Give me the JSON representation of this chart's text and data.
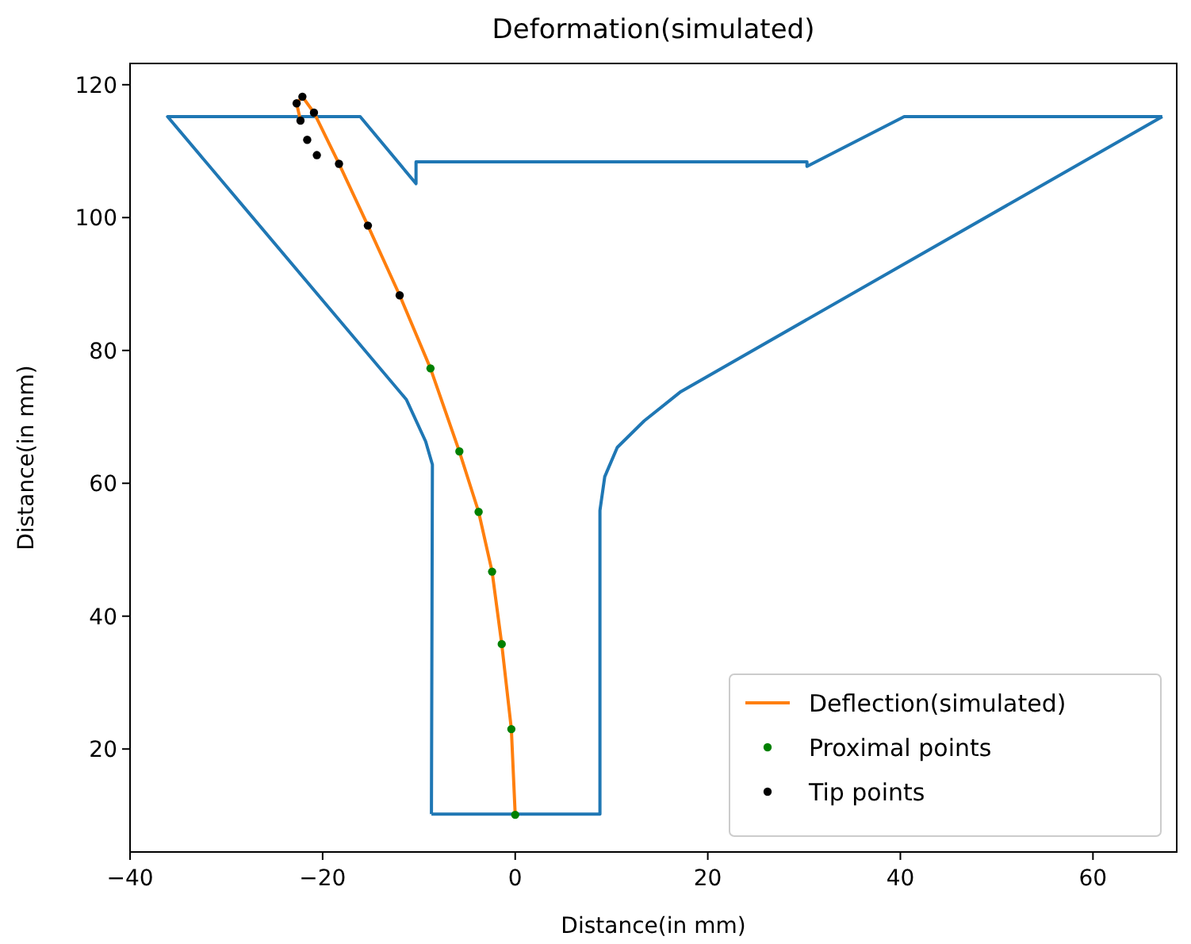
{
  "chart_data": {
    "type": "line",
    "title": "Deformation(simulated)",
    "xlabel": "Distance(in mm)",
    "ylabel": "Distance(in mm)",
    "xlim": [
      -40,
      68.7
    ],
    "ylim": [
      4.5,
      123.2
    ],
    "xticks": [
      {
        "value": -40,
        "label": "−40"
      },
      {
        "value": -20,
        "label": "−20"
      },
      0,
      20,
      40,
      60
    ],
    "yticks": [
      20,
      40,
      60,
      80,
      100,
      120
    ],
    "grid": false,
    "legend": "bottom right",
    "series": [
      {
        "color": "#1f77b4",
        "marker": "none",
        "x": [
          -8.7,
          -8.6,
          -9.3,
          -11.3,
          -36.1,
          -16.1,
          -10.3,
          -10.3,
          30.3,
          30.3,
          40.4,
          67.2
        ],
        "values": [
          10.2,
          62.8,
          66.3,
          72.6,
          115.2,
          115.2,
          105.1,
          108.4,
          108.4,
          107.7,
          115.2,
          115.2
        ]
      },
      {
        "color": "#1f77b4",
        "marker": "none",
        "x": [
          -8.7,
          8.8,
          8.8,
          9.3,
          10.6,
          13.4,
          17.2,
          67.2
        ],
        "values": [
          10.2,
          10.2,
          55.9,
          61,
          65.4,
          69.4,
          73.8,
          115.2
        ]
      },
      {
        "type": "line",
        "name": "Deflection(simulated)",
        "color": "#ff7f0e",
        "marker": "none",
        "x": [
          0,
          -0.4,
          -1.4,
          -2.4,
          -3.8,
          -5.8,
          -8.8,
          -12.0,
          -15.3,
          -18.3,
          -20.9,
          -22.1,
          -22.7,
          -22.3
        ],
        "values": [
          10.1,
          23.0,
          35.8,
          46.7,
          55.7,
          64.8,
          77.3,
          88.3,
          98.8,
          108.1,
          115.8,
          118.2,
          117.2,
          114.6
        ]
      },
      {
        "type": "scatter",
        "name": "Proximal points",
        "color": "#008000",
        "marker": "circle",
        "x": [
          0,
          -0.4,
          -1.4,
          -2.4,
          -3.8,
          -5.8,
          -8.8
        ],
        "values": [
          10.1,
          23.0,
          35.8,
          46.7,
          55.7,
          64.8,
          77.3
        ]
      },
      {
        "type": "scatter",
        "name": "Tip points",
        "color": "#000000",
        "marker": "circle",
        "x": [
          -12.0,
          -15.3,
          -18.3,
          -20.9,
          -22.1,
          -22.7,
          -22.3,
          -21.6,
          -20.6
        ],
        "values": [
          88.3,
          98.8,
          108.1,
          115.8,
          118.2,
          117.2,
          114.6,
          111.7,
          109.4
        ]
      }
    ]
  }
}
